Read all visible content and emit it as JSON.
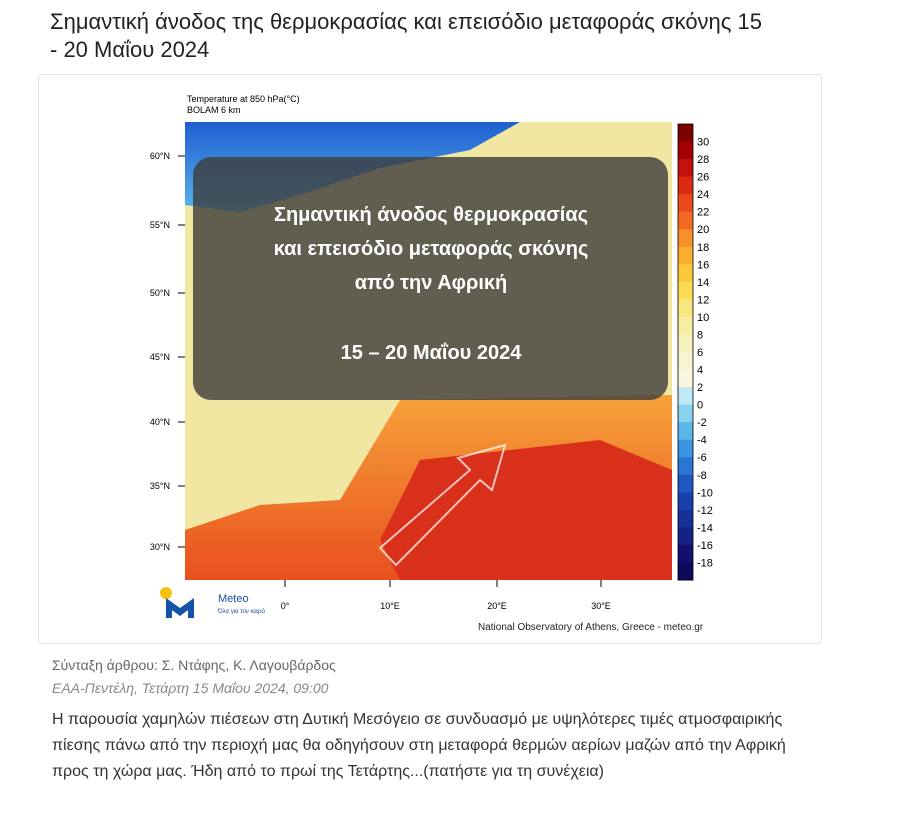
{
  "header": {
    "title": "Σημαντική άνοδος της θερμοκρασίας και επεισόδιο μεταφοράς σκόνης 15 - 20 Μαΐου 2024"
  },
  "image": {
    "map_title": [
      "Temperature at 850 hPa(°C)",
      "BOLAM 6 km"
    ],
    "latitudes": [
      "60°N",
      "55°N",
      "50°N",
      "45°N",
      "40°N",
      "35°N",
      "30°N"
    ],
    "longitudes": [
      "0°",
      "10°E",
      "20°E",
      "30°E"
    ],
    "colorbar": [
      30,
      28,
      26,
      24,
      22,
      20,
      18,
      16,
      14,
      12,
      10,
      8,
      6,
      4,
      2,
      0,
      -2,
      -4,
      -6,
      -8,
      -10,
      -12,
      -14,
      -16,
      -18
    ],
    "overlay": {
      "lines": [
        "Σημαντική άνοδος θερμοκρασίας",
        "και επεισόδιο μεταφοράς σκόνης",
        "από την Αφρική"
      ],
      "dates": "15 – 20 Μαΐου 2024"
    },
    "logo": {
      "name": "Meteo",
      "tagline": "Όλα για τον καιρό"
    },
    "credit": "National Observatory of Athens, Greece - meteo.gr"
  },
  "byline": {
    "authors": "Σύνταξη άρθρου: Σ. Ντάφης, Κ. Λαγουβάρδος",
    "dateline": "ΕΑΑ-Πεντέλη, Τετάρτη 15 Μαΐου 2024, 09:00"
  },
  "summary": "Η παρουσία χαμηλών πιέσεων στη Δυτική Μεσόγειο σε συνδυασμό με υψηλότερες τιμές ατμοσφαιρικής πίεσης πάνω από την περιοχή μας θα οδηγήσουν στη μεταφορά θερμών αερίων μαζών από την Αφρική προς τη χώρα μας. Ήδη από το πρωί της Τετάρτης...(πατήστε για τη συνέχεια)"
}
